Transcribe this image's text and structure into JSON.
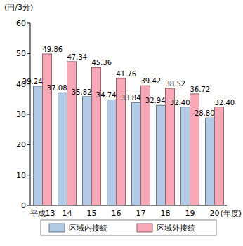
{
  "chart_data": {
    "type": "bar",
    "y_label": "(円/3分)",
    "x_label": "(年度)",
    "categories": [
      "平成13",
      "14",
      "15",
      "16",
      "17",
      "18",
      "19",
      "20"
    ],
    "series": [
      {
        "name": "区域内接続",
        "color": "#b3cae6",
        "values": [
          39.24,
          37.08,
          35.82,
          34.74,
          33.84,
          32.94,
          32.4,
          28.8
        ],
        "value_labels": [
          "39.24",
          "37.08",
          "35.82",
          "34.74",
          "33.84",
          "32.94",
          "32.40",
          "28.80"
        ]
      },
      {
        "name": "区域外接続",
        "color": "#f6a8b6",
        "values": [
          49.86,
          47.34,
          45.36,
          41.76,
          39.42,
          38.52,
          36.72,
          32.4
        ],
        "value_labels": [
          "49.86",
          "47.34",
          "45.36",
          "41.76",
          "39.42",
          "38.52",
          "36.72",
          "32.40"
        ]
      }
    ],
    "ylim": [
      0,
      60
    ],
    "yticks": [
      0,
      10,
      20,
      30,
      40,
      50,
      60
    ],
    "grid": false,
    "legend": "bottom",
    "data_labels": true
  }
}
